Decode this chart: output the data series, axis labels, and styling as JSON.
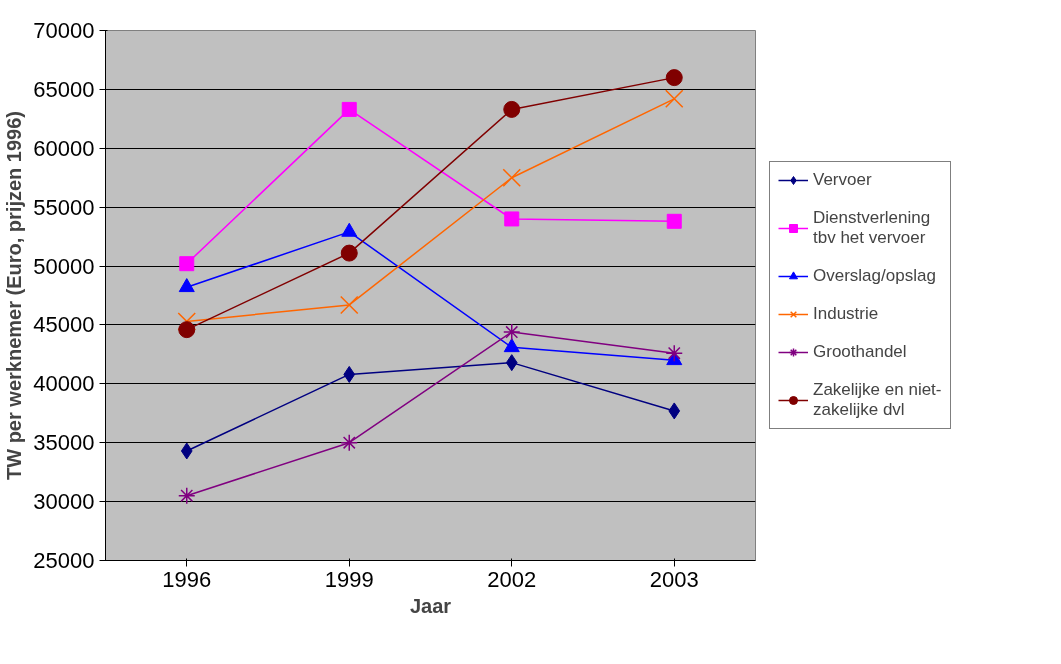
{
  "chart_data": {
    "type": "line",
    "xlabel": "Jaar",
    "ylabel": "TW per werknemer (Euro, prijzen 1996)",
    "categories": [
      "1996",
      "1999",
      "2002",
      "2003"
    ],
    "ylim": [
      25000,
      70000
    ],
    "yticks": [
      25000,
      30000,
      35000,
      40000,
      45000,
      50000,
      55000,
      60000,
      65000,
      70000
    ],
    "grid": "y",
    "legend": "right",
    "line_style": "solid",
    "series": [
      {
        "name": "Vervoer",
        "color": "#000080",
        "marker": "diamond",
        "values": [
          34300,
          40800,
          41800,
          37700
        ]
      },
      {
        "name": "Dienstverlening\ntbv het vervoer",
        "color": "#ff00ff",
        "marker": "square",
        "values": [
          50200,
          63300,
          54000,
          53800
        ]
      },
      {
        "name": "Overslag/opslag",
        "color": "#0000ff",
        "marker": "triangle",
        "values": [
          48200,
          52900,
          43100,
          42000
        ]
      },
      {
        "name": "Industrie",
        "color": "#ff6600",
        "marker": "x",
        "values": [
          45300,
          46700,
          57500,
          64200
        ]
      },
      {
        "name": "Groothandel",
        "color": "#800080",
        "marker": "cross",
        "values": [
          30500,
          35000,
          44400,
          42600
        ]
      },
      {
        "name": "Zakelijke en niet-\nzakelijke dvl",
        "color": "#800000",
        "marker": "circle",
        "values": [
          44600,
          51100,
          63300,
          66000
        ]
      }
    ]
  }
}
